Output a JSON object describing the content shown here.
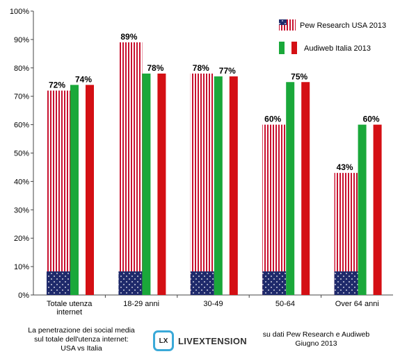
{
  "chart_data": {
    "type": "bar",
    "categories": [
      "Totale utenza internet",
      "18-29 anni",
      "30-49",
      "50-64",
      "Over 64 anni"
    ],
    "category_lines": [
      [
        "Totale utenza",
        "internet"
      ],
      [
        "18-29 anni"
      ],
      [
        "30-49"
      ],
      [
        "50-64"
      ],
      [
        "Over 64 anni"
      ]
    ],
    "series": [
      {
        "name": "Pew Research USA 2013",
        "values": [
          72,
          89,
          78,
          60,
          43
        ],
        "labels": [
          "72%",
          "89%",
          "78%",
          "60%",
          "43%"
        ]
      },
      {
        "name": "Audiweb Italia 2013",
        "values": [
          74,
          78,
          77,
          75,
          60
        ],
        "labels": [
          "74%",
          "78%",
          "77%",
          "75%",
          "60%"
        ]
      }
    ],
    "ylim": [
      0,
      100
    ],
    "yticks": [
      "0%",
      "10%",
      "20%",
      "30%",
      "40%",
      "50%",
      "60%",
      "70%",
      "80%",
      "90%",
      "100%"
    ],
    "legend_position": "top-right",
    "grid": false,
    "colors": {
      "usa_stripe_red": "#c8102e",
      "usa_union_blue": "#1f2a6b",
      "italy_green": "#1aa83a",
      "italy_red": "#d40f14"
    }
  },
  "footer": {
    "left_lines": [
      "La penetrazione dei social media",
      "sul totale dell'utenza internet:",
      "USA vs Italia"
    ],
    "right_lines": [
      "su dati Pew Research e Audiweb",
      "Giugno 2013"
    ]
  },
  "logo": {
    "badge": "LX",
    "text": "LIVEXTENSION"
  }
}
